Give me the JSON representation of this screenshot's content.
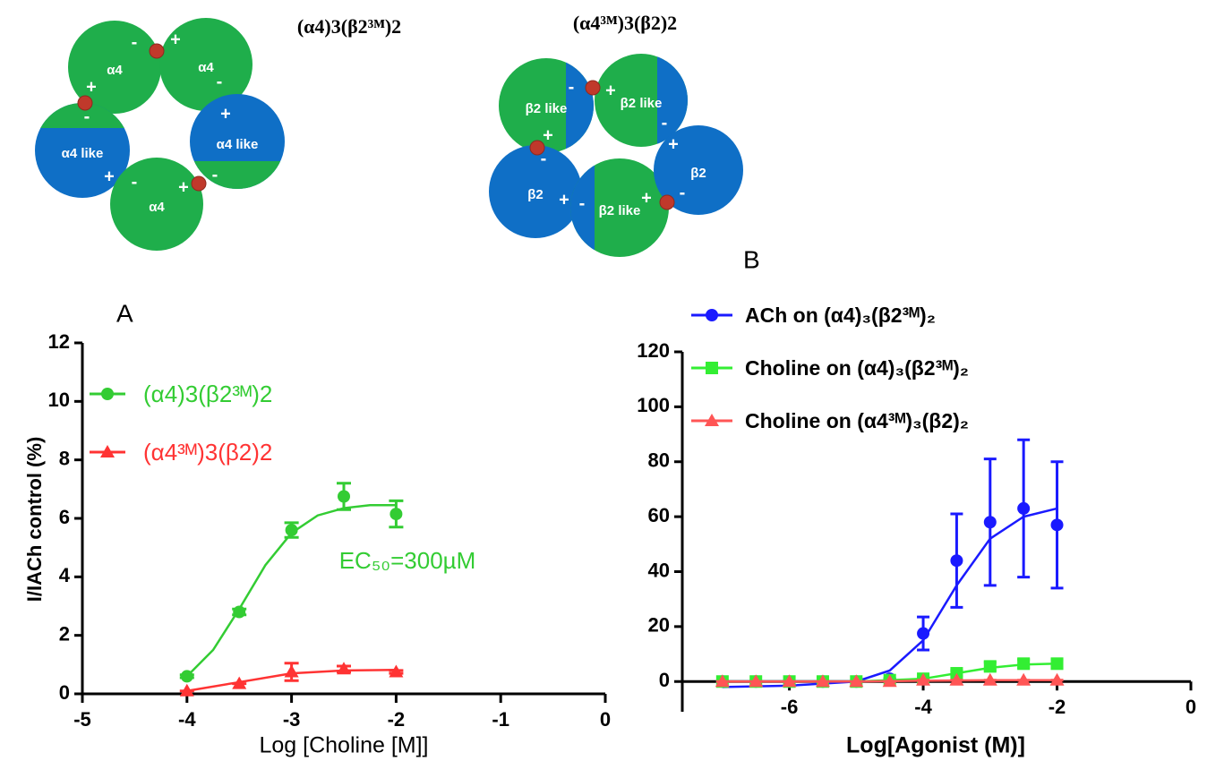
{
  "diagrams": [
    {
      "title": "(α4)3(β2³ᴹ)2",
      "subunits": [
        "α4",
        "α4",
        "α4 like",
        "α4 like",
        "α4"
      ],
      "charges": [
        "-",
        "+",
        "-",
        "+",
        "-",
        "+",
        "+",
        "-",
        "+",
        "-"
      ]
    },
    {
      "title": "(α4³ᴹ)3(β2)2",
      "subunits": [
        "β2 like",
        "β2 like",
        "β2",
        "β2 like",
        "β2"
      ],
      "charges": [
        "-",
        "+",
        "-",
        "+",
        "-",
        "+",
        "-",
        "+",
        "-",
        "+"
      ]
    }
  ],
  "chart_data": [
    {
      "type": "line",
      "title": "A",
      "xlabel": "Log [Choline [M]]",
      "ylabel": "I/IACh control (%)",
      "xlim": [
        -5,
        0
      ],
      "xticks": [
        -5,
        -4,
        -3,
        -2,
        -1,
        0
      ],
      "ylim": [
        0,
        12
      ],
      "yticks": [
        0,
        2,
        4,
        6,
        8,
        10,
        12
      ],
      "legend": "upper left",
      "series": [
        {
          "name": "(α4)3(β2³ᴹ)2",
          "color": "#33cc33",
          "marker": "circle",
          "x": [
            -4,
            -3.5,
            -3,
            -2.5,
            -2
          ],
          "values": [
            0.6,
            2.8,
            5.6,
            6.75,
            6.15
          ],
          "errors": [
            0.05,
            0.1,
            0.25,
            0.45,
            0.45
          ],
          "fit": {
            "x": [
              -4,
              -3.75,
              -3.5,
              -3.25,
              -3,
              -2.75,
              -2.5,
              -2.25,
              -2
            ],
            "values": [
              0.6,
              1.5,
              2.9,
              4.4,
              5.5,
              6.1,
              6.35,
              6.45,
              6.45
            ]
          }
        },
        {
          "name": "(α4³ᴹ)3(β2)2",
          "color": "#ff3333",
          "marker": "triangle",
          "x": [
            -4,
            -3.5,
            -3,
            -2.5,
            -2
          ],
          "values": [
            0.1,
            0.35,
            0.75,
            0.85,
            0.75
          ],
          "errors": [
            0,
            0,
            0.3,
            0.1,
            0.05
          ],
          "fit": {
            "x": [
              -4,
              -3.5,
              -3,
              -2.5,
              -2
            ],
            "values": [
              0.1,
              0.4,
              0.7,
              0.8,
              0.82
            ]
          }
        }
      ],
      "annotation": "EC₅₀=300µM",
      "annotation_color": "#33cc33"
    },
    {
      "type": "line",
      "title": "B",
      "xlabel": "Log[Agonist (M)]",
      "xlim": [
        -7.6,
        0
      ],
      "xticks": [
        -6,
        -4,
        -2,
        0
      ],
      "ylim": [
        -11,
        120
      ],
      "yticks": [
        0,
        20,
        40,
        60,
        80,
        100,
        120
      ],
      "legend": "top",
      "series": [
        {
          "name": "ACh on (α4)₃(β2³ᴹ)₂",
          "color": "#1a1aff",
          "marker": "circle",
          "x": [
            -7,
            -6.5,
            -6,
            -5.5,
            -5,
            -4.5,
            -4,
            -3.5,
            -3,
            -2.5,
            -2
          ],
          "values": [
            0,
            0,
            0,
            0,
            0,
            1,
            17.5,
            44,
            58,
            63,
            57
          ],
          "errors": [
            0,
            0,
            0,
            0,
            0,
            0,
            6,
            17,
            23,
            25,
            23
          ],
          "fit": {
            "x": [
              -7,
              -6,
              -5,
              -4.5,
              -4,
              -3.5,
              -3,
              -2.5,
              -2
            ],
            "values": [
              -2,
              -1.5,
              0,
              4,
              15,
              35,
              52,
              60,
              63
            ]
          }
        },
        {
          "name": "Choline on (α4)₃(β2³ᴹ)₂",
          "color": "#33ee33",
          "marker": "square",
          "x": [
            -7,
            -6.5,
            -6,
            -5.5,
            -5,
            -4.5,
            -4,
            -3.5,
            -3,
            -2.5,
            -2
          ],
          "values": [
            0,
            0,
            0,
            0,
            0,
            0.5,
            1,
            3,
            5.5,
            6.5,
            6.5
          ],
          "errors": [
            0,
            0,
            0,
            0,
            0,
            0,
            0.5,
            1,
            1.5,
            1.5,
            1.5
          ],
          "fit": {
            "x": [
              -7,
              -5,
              -4,
              -3.5,
              -3,
              -2.5,
              -2
            ],
            "values": [
              0,
              0,
              1,
              3,
              5,
              6.2,
              6.5
            ]
          }
        },
        {
          "name": "Choline on (α4³ᴹ)₃(β2)₂",
          "color": "#ff5555",
          "marker": "triangle",
          "x": [
            -7,
            -6.5,
            -6,
            -5.5,
            -5,
            -4.5,
            -4,
            -3.5,
            -3,
            -2.5,
            -2
          ],
          "values": [
            0,
            0,
            0,
            0,
            0,
            0,
            0.5,
            0.5,
            0.5,
            0.5,
            0.5
          ],
          "errors": [
            0,
            0,
            0,
            0,
            0,
            0,
            0,
            0,
            0,
            0,
            0
          ],
          "fit": {
            "x": [
              -7,
              -5,
              -4,
              -3,
              -2
            ],
            "values": [
              0,
              0,
              0.3,
              0.5,
              0.5
            ]
          }
        }
      ]
    }
  ]
}
